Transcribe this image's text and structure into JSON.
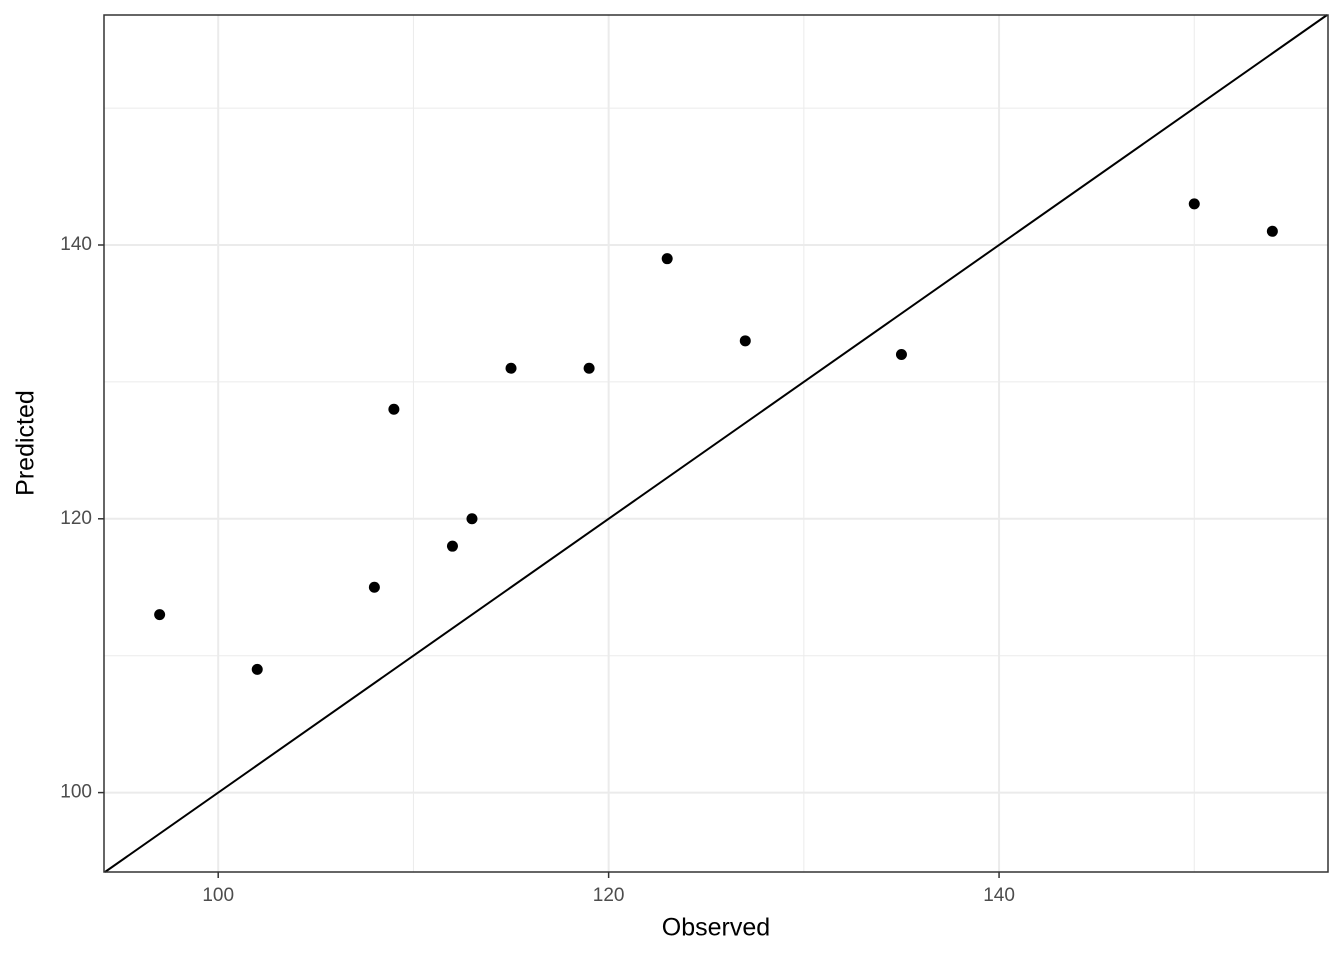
{
  "chart_data": {
    "type": "scatter",
    "x_label": "Observed",
    "y_label": "Predicted",
    "x": [
      97,
      102,
      108,
      109,
      112,
      113,
      115,
      119,
      123,
      127,
      135,
      150,
      154
    ],
    "series": [
      {
        "color": "#000000",
        "values": [
          113,
          109,
          115,
          128,
          118,
          120,
          131,
          131,
          139,
          133,
          132,
          143,
          141
        ]
      }
    ],
    "xlim": [
      94.15,
      156.85
    ],
    "ylim": [
      94.2,
      156.8
    ],
    "xticks": [
      100,
      120,
      140
    ],
    "yticks": [
      100,
      120,
      140
    ],
    "x_minor_ticks": [
      110,
      130,
      150
    ],
    "y_minor_ticks": [
      110,
      130,
      150
    ],
    "grid": true,
    "identity_line": true
  }
}
